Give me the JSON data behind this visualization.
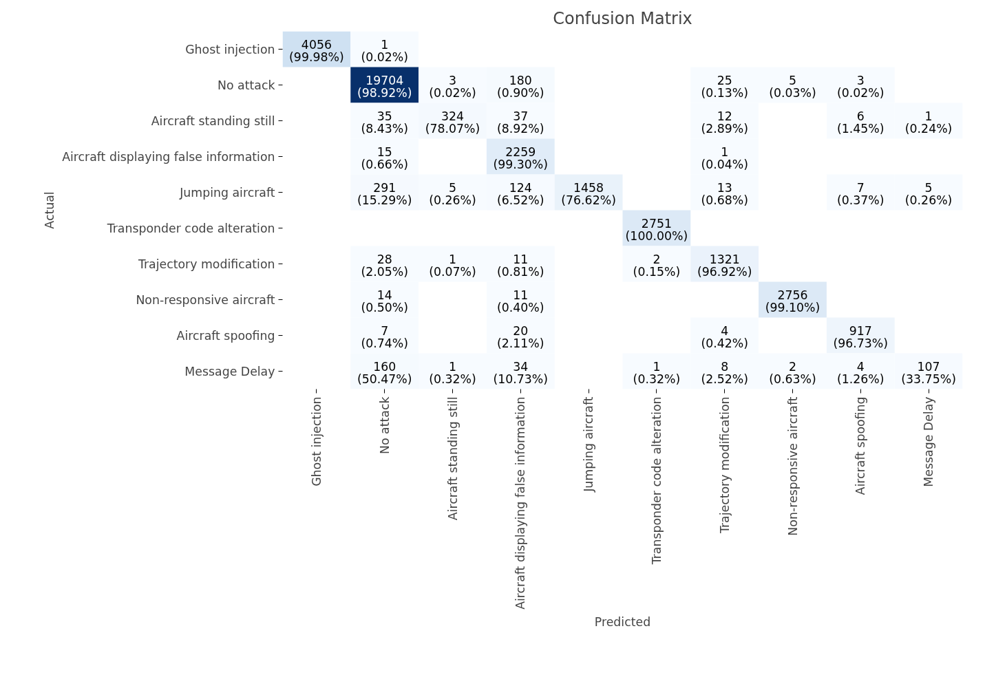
{
  "chart_data": {
    "type": "heatmap",
    "title": "Confusion Matrix",
    "xlabel": "Predicted",
    "ylabel": "Actual",
    "data_labels": true,
    "categories": [
      "Ghost injection",
      "No attack",
      "Aircraft standing still",
      "Aircraft displaying false information",
      "Jumping aircraft",
      "Transponder code alteration",
      "Trajectory modification",
      "Non-responsive aircraft",
      "Aircraft spoofing",
      "Message Delay"
    ],
    "y_categories": [
      "Ghost injection",
      "No attack",
      "Aircraft standing still",
      "Aircraft displaying false information",
      "Jumping aircraft",
      "Transponder code alteration",
      "Trajectory modification",
      "Non-responsive aircraft",
      "Aircraft spoofing",
      "Message Delay"
    ],
    "cells": [
      [
        4056,
        1,
        null,
        null,
        null,
        null,
        null,
        null,
        null,
        null
      ],
      [
        null,
        19704,
        3,
        180,
        null,
        null,
        25,
        5,
        3,
        null
      ],
      [
        null,
        35,
        324,
        37,
        null,
        null,
        12,
        null,
        6,
        1
      ],
      [
        null,
        15,
        null,
        2259,
        null,
        null,
        1,
        null,
        null,
        null
      ],
      [
        null,
        291,
        5,
        124,
        1458,
        null,
        13,
        null,
        7,
        5
      ],
      [
        null,
        null,
        null,
        null,
        null,
        2751,
        null,
        null,
        null,
        null
      ],
      [
        null,
        28,
        1,
        11,
        null,
        2,
        1321,
        null,
        null,
        null
      ],
      [
        null,
        14,
        null,
        11,
        null,
        null,
        null,
        2756,
        null,
        null
      ],
      [
        null,
        7,
        null,
        20,
        null,
        null,
        4,
        null,
        917,
        null
      ],
      [
        null,
        160,
        1,
        34,
        null,
        1,
        8,
        2,
        4,
        107
      ]
    ],
    "annotations": [
      "(99.98%)",
      "(0.02%)",
      "(98.92%)",
      "(0.02%)",
      "(0.90%)",
      "(0.13%)",
      "(0.03%)",
      "(0.02%)",
      "(8.43%)",
      "(78.07%)",
      "(8.92%)",
      "(2.89%)",
      "(1.45%)",
      "(0.24%)",
      "(0.66%)",
      "(99.30%)",
      "(0.04%)",
      "(15.29%)",
      "(0.26%)",
      "(6.52%)",
      "(76.62%)",
      "(0.68%)",
      "(0.37%)",
      "(0.26%)",
      "(100.00%)",
      "(2.05%)",
      "(0.07%)",
      "(0.81%)",
      "(0.15%)",
      "(96.92%)",
      "(0.50%)",
      "(0.40%)",
      "(99.10%)",
      "(0.74%)",
      "(2.11%)",
      "(0.42%)",
      "(96.73%)",
      "(50.47%)",
      "(0.32%)",
      "(10.73%)",
      "(0.32%)",
      "(2.52%)",
      "(0.63%)",
      "(1.26%)",
      "(33.75%)"
    ]
  }
}
